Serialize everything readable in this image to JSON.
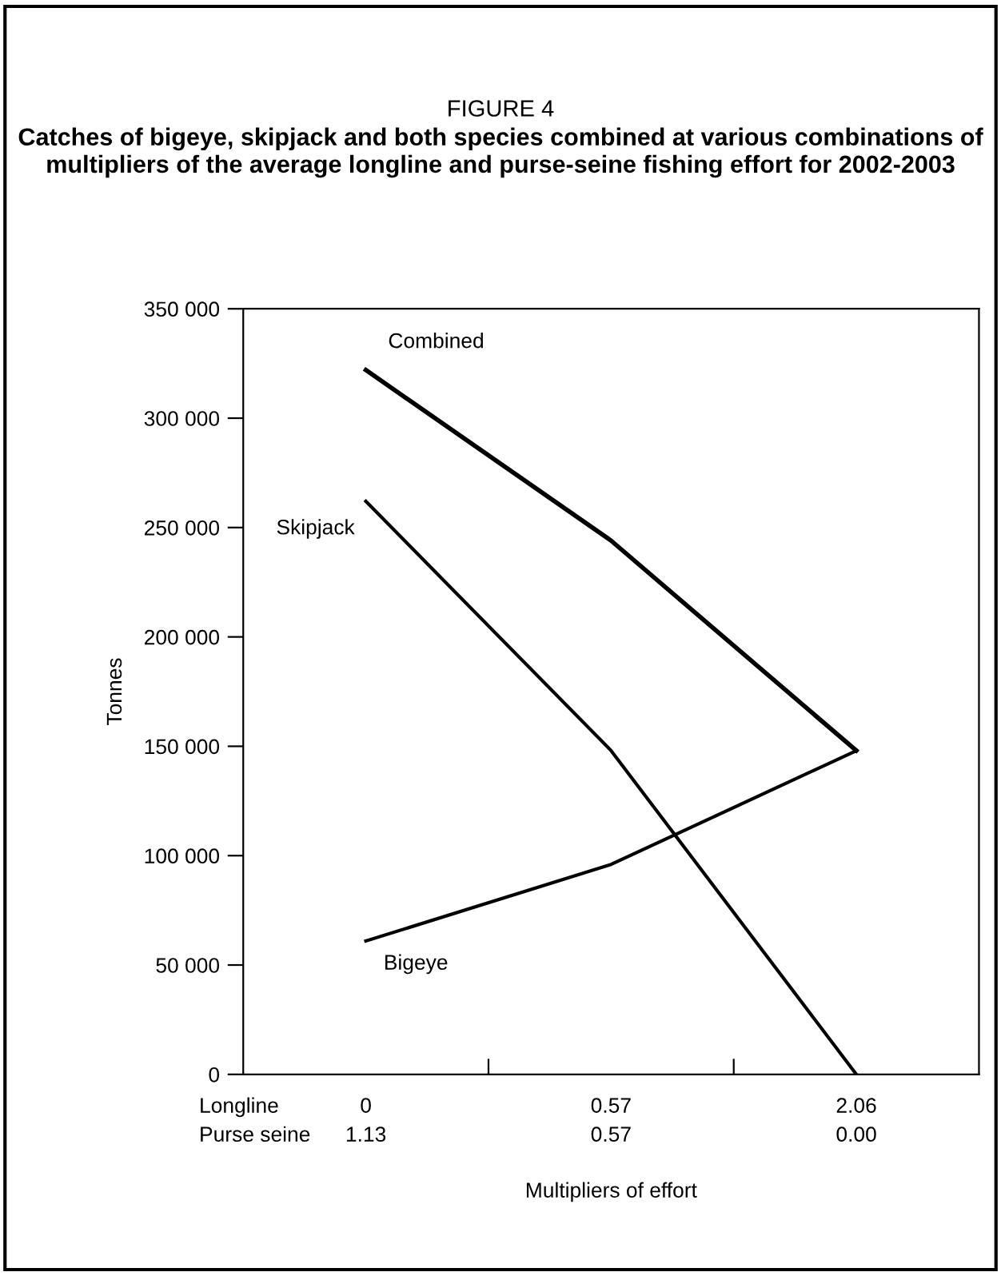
{
  "chart_data": {
    "type": "line",
    "title": "FIGURE 4",
    "subtitle": "Catches of bigeye, skipjack and both species combined at various combinations of multipliers of the average longline and purse-seine fishing effort for 2002-2003",
    "categories": [
      "0\n1.13",
      "0.57\n0.57",
      "2.06\n0.00"
    ],
    "series": [
      {
        "name": "Combined",
        "color": "#000000",
        "values": [
          322000,
          244000,
          148000
        ]
      },
      {
        "name": "Skipjack",
        "color": "#000000",
        "values": [
          262000,
          148000,
          0
        ]
      },
      {
        "name": "Bigeye",
        "color": "#000000",
        "values": [
          61000,
          96000,
          148000
        ]
      }
    ],
    "ylabel": "Tonnes",
    "xlabel": "Multipliers of effort",
    "annotations": [
      "Longline\nPurse seine"
    ],
    "ylim": [
      0,
      350000
    ],
    "yticks": [
      0,
      {
        "value": 50000,
        "label": "50 000"
      },
      {
        "value": 100000,
        "label": "100 000"
      },
      {
        "value": 150000,
        "label": "150 000"
      },
      {
        "value": 200000,
        "label": "200 000"
      },
      {
        "value": 250000,
        "label": "250 000"
      },
      {
        "value": 300000,
        "label": "300 000"
      },
      {
        "value": 350000,
        "label": "350 000"
      }
    ],
    "grid": false,
    "legend": false,
    "marker": "none",
    "line_style": "solid"
  }
}
